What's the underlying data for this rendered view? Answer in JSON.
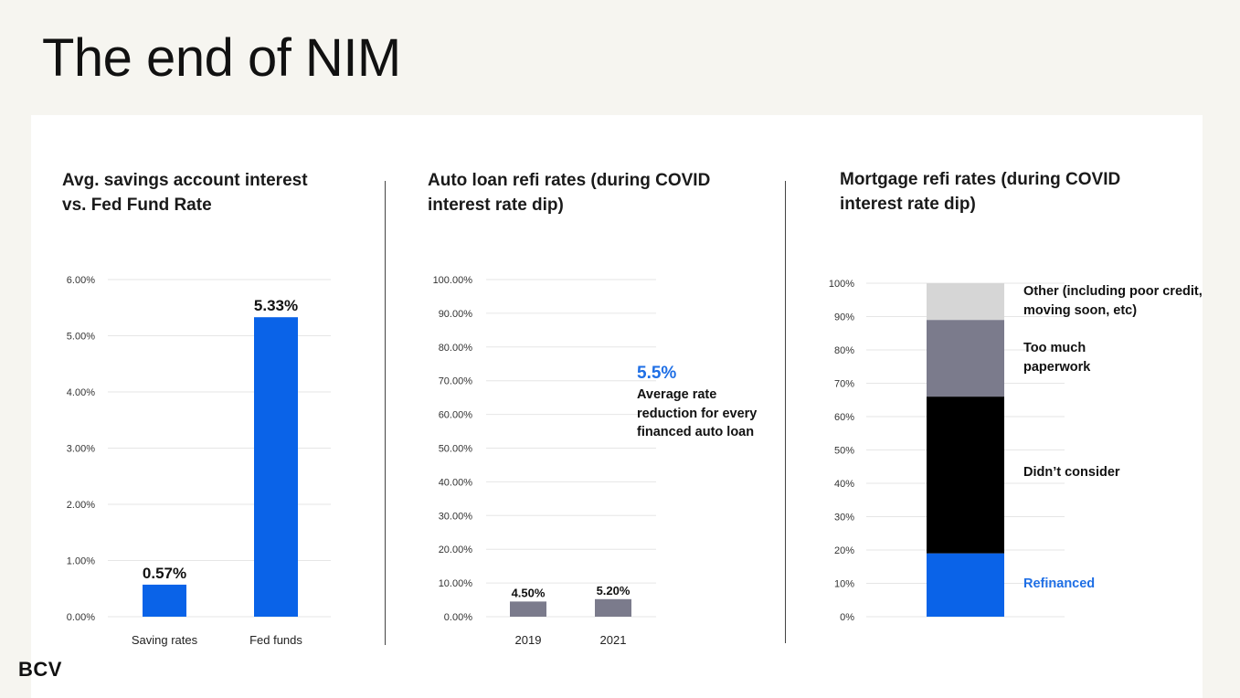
{
  "page": {
    "title": "The end of NIM",
    "logo": "BCV"
  },
  "colors": {
    "blue": "#0a63e8",
    "gray": "#7b7b8c",
    "light_gray": "#d6d6d6",
    "black": "#000000",
    "blue_text": "#1f6fe5"
  },
  "chart_data": [
    {
      "type": "bar",
      "title": "Avg. savings account interest vs. Fed Fund Rate",
      "categories": [
        "Saving rates",
        "Fed funds"
      ],
      "values": [
        0.57,
        5.33
      ],
      "data_labels": [
        "0.57%",
        "5.33%"
      ],
      "yticks": [
        "0.00%",
        "1.00%",
        "2.00%",
        "3.00%",
        "4.00%",
        "5.00%",
        "6.00%"
      ],
      "ylim": [
        0,
        6
      ],
      "grid": true,
      "color": "#0a63e8"
    },
    {
      "type": "bar",
      "title": "Auto loan refi rates (during COVID interest rate dip)",
      "categories": [
        "2019",
        "2021"
      ],
      "values": [
        4.5,
        5.2
      ],
      "data_labels": [
        "4.50%",
        "5.20%"
      ],
      "yticks": [
        "0.00%",
        "10.00%",
        "20.00%",
        "30.00%",
        "40.00%",
        "50.00%",
        "60.00%",
        "70.00%",
        "80.00%",
        "90.00%",
        "100.00%"
      ],
      "ylim": [
        0,
        100
      ],
      "grid": true,
      "color": "#7b7b8c",
      "annotation": {
        "value": "5.5%",
        "text": "Average rate reduction for every financed auto loan"
      }
    },
    {
      "type": "bar",
      "stacked": true,
      "title": "Mortgage refi rates (during COVID interest rate dip)",
      "yticks": [
        "0%",
        "10%",
        "20%",
        "30%",
        "40%",
        "50%",
        "60%",
        "70%",
        "80%",
        "90%",
        "100%"
      ],
      "ylim": [
        0,
        100
      ],
      "grid": true,
      "segments": [
        {
          "name": "Refinanced",
          "value": 19,
          "color": "#0a63e8"
        },
        {
          "name": "Didn’t consider",
          "value": 47,
          "color": "#000000"
        },
        {
          "name": "Too much paperwork",
          "value": 23,
          "color": "#7b7b8c"
        },
        {
          "name": "Other (including poor credit, moving soon, etc)",
          "value": 11,
          "color": "#d6d6d6"
        }
      ]
    }
  ]
}
